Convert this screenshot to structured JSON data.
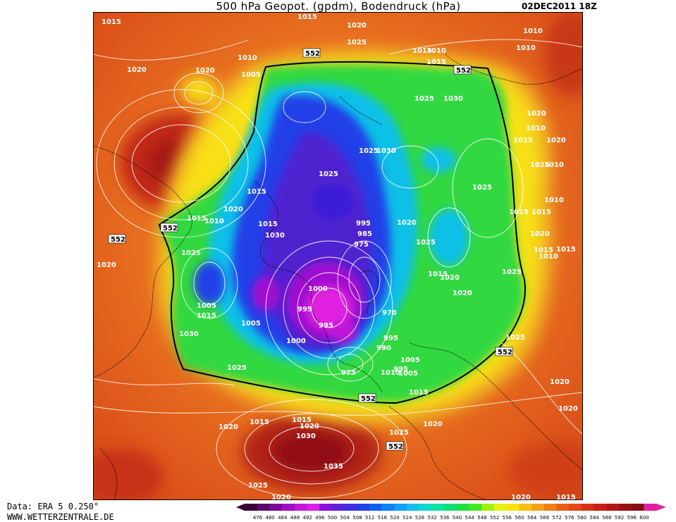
{
  "header": {
    "title": "500 hPa Geopot. (gpdm), Bodendruck (hPa)",
    "timestamp": "02DEC2011 18Z"
  },
  "footer": {
    "data_source": "Data: ERA 5 0.250°",
    "website": "WWW.WETTERZENTRALE.DE"
  },
  "colorbar": {
    "ticks": [
      "476",
      "480",
      "484",
      "488",
      "492",
      "496",
      "500",
      "504",
      "508",
      "512",
      "516",
      "520",
      "524",
      "528",
      "532",
      "536",
      "540",
      "544",
      "548",
      "552",
      "556",
      "560",
      "564",
      "568",
      "572",
      "576",
      "580",
      "584",
      "588",
      "592",
      "596",
      "600"
    ],
    "colors": [
      "#3a003a",
      "#5a0a6a",
      "#7a0a9a",
      "#a010c0",
      "#c018d8",
      "#d820e8",
      "#8a10d8",
      "#6020d8",
      "#4030e0",
      "#2040e8",
      "#1060f0",
      "#1080f8",
      "#10a0f8",
      "#10c0e8",
      "#10d8c8",
      "#10e0a0",
      "#10e070",
      "#20e040",
      "#40e820",
      "#a0f010",
      "#e8f010",
      "#f8e010",
      "#f8c010",
      "#f8a018",
      "#f08018",
      "#e86018",
      "#e04818",
      "#d83018",
      "#c82018",
      "#b01818",
      "#981018",
      "#801018",
      "#e020a0"
    ]
  },
  "map": {
    "colors": {
      "ocean_ridge": "#c02818",
      "subtropics": "#e06020",
      "mid": "#f0a020",
      "yellow": "#f8e818",
      "green": "#30d840",
      "cyan": "#10c0e8",
      "blue": "#2040e8",
      "indigo": "#5020d0",
      "violet": "#a010d0",
      "magenta": "#e020e0"
    },
    "contour_labels": [
      "552",
      "552",
      "552",
      "552",
      "552",
      "552",
      "552"
    ],
    "isobar_labels": [
      "1015",
      "1015",
      "1020",
      "1025",
      "1010",
      "1010",
      "1015",
      "1010",
      "1015",
      "1020",
      "1010",
      "1005",
      "1020",
      "1025",
      "1030",
      "1020",
      "1030",
      "1025",
      "1025",
      "1010",
      "1015",
      "1020",
      "1025",
      "1010",
      "1025",
      "1015",
      "1020",
      "1010",
      "1015",
      "1015",
      "1015",
      "1010",
      "1030",
      "1015",
      "1025",
      "1020",
      "1015",
      "1015",
      "1010",
      "1020",
      "995",
      "985",
      "975",
      "1025",
      "1020",
      "1015",
      "1020",
      "1000",
      "1005",
      "1015",
      "995",
      "1025",
      "1005",
      "995",
      "1020",
      "970",
      "1030",
      "995",
      "990",
      "1000",
      "1005",
      "995",
      "975",
      "1025",
      "1025",
      "1010",
      "1005",
      "1015",
      "1015",
      "1020",
      "1015",
      "1020",
      "1020",
      "1025",
      "1030",
      "1020",
      "1020",
      "1035",
      "1025",
      "1020",
      "1020",
      "1015"
    ]
  }
}
